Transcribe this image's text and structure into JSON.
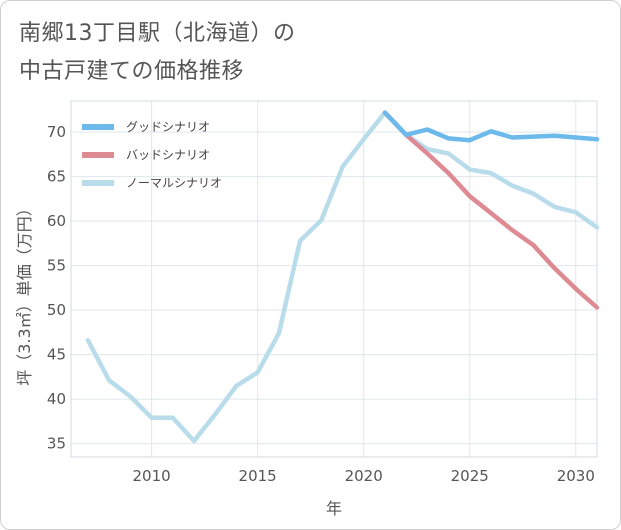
{
  "title": {
    "line1": "南郷13丁目駅（北海道）の",
    "line2": "中古戸建ての価格推移"
  },
  "chart_data": {
    "type": "line",
    "xlabel": "年",
    "ylabel": "坪（3.3㎡）単価（万円）",
    "xlim": [
      2006.2,
      2031
    ],
    "ylim": [
      33.5,
      73.5
    ],
    "xticks": [
      2010,
      2015,
      2020,
      2025,
      2030
    ],
    "yticks": [
      35,
      40,
      45,
      50,
      55,
      60,
      65,
      70
    ],
    "grid": true,
    "legend_position": "top-left",
    "series": [
      {
        "name": "グッドシナリオ",
        "color": "#6cb9ec",
        "x": [
          2021,
          2022,
          2023,
          2024,
          2025,
          2026,
          2027,
          2028,
          2029,
          2030,
          2031
        ],
        "values": [
          72.2,
          69.7,
          70.3,
          69.3,
          69.1,
          70.1,
          69.4,
          69.5,
          69.6,
          69.4,
          69.2
        ]
      },
      {
        "name": "バッドシナリオ",
        "color": "#de8a93",
        "x": [
          2021,
          2022,
          2023,
          2024,
          2025,
          2026,
          2027,
          2028,
          2029,
          2030,
          2031
        ],
        "values": [
          72.2,
          69.7,
          67.6,
          65.4,
          62.8,
          60.9,
          59.0,
          57.3,
          54.7,
          52.4,
          50.3
        ]
      },
      {
        "name": "ノーマルシナリオ",
        "color": "#b9dceb",
        "x": [
          2007,
          2008,
          2009,
          2010,
          2011,
          2012,
          2013,
          2014,
          2015,
          2016,
          2017,
          2018,
          2019,
          2020,
          2021,
          2022,
          2023,
          2024,
          2025,
          2026,
          2027,
          2028,
          2029,
          2030,
          2031
        ],
        "values": [
          46.6,
          42.1,
          40.3,
          37.9,
          37.9,
          35.3,
          38.3,
          41.5,
          43.0,
          47.4,
          57.8,
          60.1,
          66.1,
          69.2,
          72.2,
          69.7,
          68.1,
          67.6,
          65.8,
          65.4,
          64.0,
          63.1,
          61.6,
          61.0,
          59.3
        ]
      }
    ]
  }
}
